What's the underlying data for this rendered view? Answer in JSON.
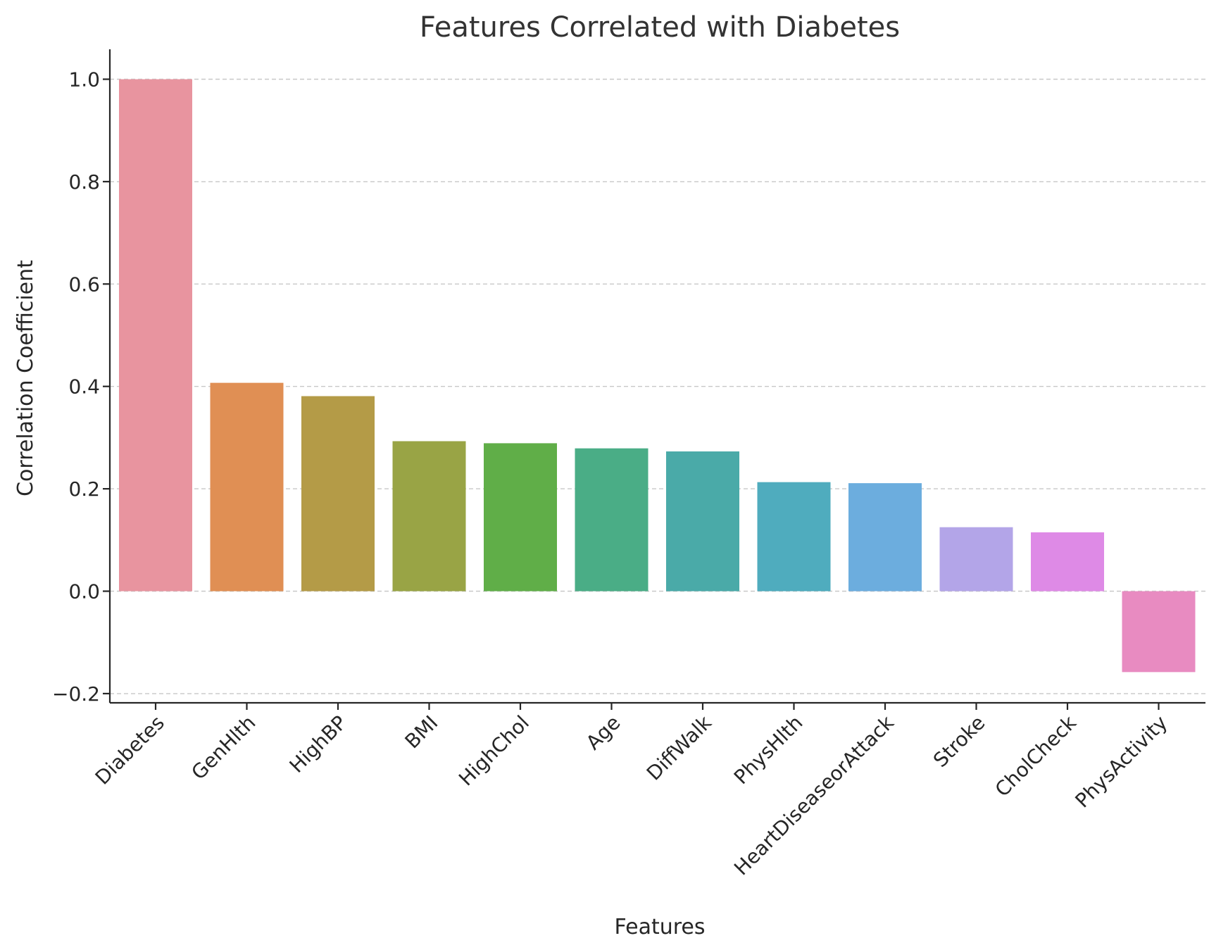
{
  "chart_data": {
    "type": "bar",
    "title": "Features Correlated with Diabetes",
    "xlabel": "Features",
    "ylabel": "Correlation Coefficient",
    "ylim": [
      -0.217,
      1.058
    ],
    "yticks": [
      -0.2,
      0.0,
      0.2,
      0.4,
      0.6,
      0.8,
      1.0
    ],
    "ytick_labels": [
      "−0.2",
      "0.0",
      "0.2",
      "0.4",
      "0.6",
      "0.8",
      "1.0"
    ],
    "grid": "y-dashed",
    "categories": [
      "Diabetes",
      "GenHlth",
      "HighBP",
      "BMI",
      "HighChol",
      "Age",
      "DiffWalk",
      "PhysHlth",
      "HeartDiseaseorAttack",
      "Stroke",
      "CholCheck",
      "PhysActivity"
    ],
    "values": [
      1.0,
      0.407,
      0.381,
      0.293,
      0.289,
      0.279,
      0.273,
      0.213,
      0.211,
      0.125,
      0.115,
      -0.158
    ],
    "colors": [
      "#e8949f",
      "#e08f54",
      "#b49b47",
      "#99a445",
      "#60ae48",
      "#4aad86",
      "#4aaaa8",
      "#4facbe",
      "#6cadde",
      "#b3a5e8",
      "#de8ae6",
      "#e88bc1"
    ]
  }
}
